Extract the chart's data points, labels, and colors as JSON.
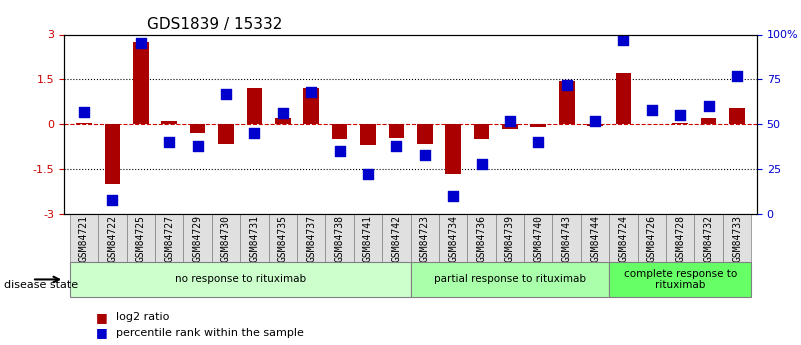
{
  "title": "GDS1839 / 15332",
  "samples": [
    "GSM84721",
    "GSM84722",
    "GSM84725",
    "GSM84727",
    "GSM84729",
    "GSM84730",
    "GSM84731",
    "GSM84735",
    "GSM84737",
    "GSM84738",
    "GSM84741",
    "GSM84742",
    "GSM84723",
    "GSM84734",
    "GSM84736",
    "GSM84739",
    "GSM84740",
    "GSM84743",
    "GSM84744",
    "GSM84724",
    "GSM84726",
    "GSM84728",
    "GSM84732",
    "GSM84733"
  ],
  "log2_ratio": [
    0.05,
    -2.0,
    2.75,
    0.1,
    -0.3,
    -0.65,
    1.2,
    0.2,
    1.2,
    -0.5,
    -0.7,
    -0.45,
    -0.65,
    -1.65,
    -0.5,
    -0.15,
    -0.1,
    1.45,
    -0.05,
    1.7,
    0.0,
    0.05,
    0.2,
    0.55
  ],
  "percentile_rank": [
    57,
    8,
    95,
    40,
    38,
    67,
    45,
    56,
    68,
    35,
    22,
    38,
    33,
    10,
    28,
    52,
    40,
    72,
    52,
    97,
    58,
    55,
    60,
    77
  ],
  "groups": [
    {
      "label": "no response to rituximab",
      "start": 0,
      "end": 12,
      "color": "#ccffcc"
    },
    {
      "label": "partial response to rituximab",
      "start": 12,
      "end": 19,
      "color": "#aaffaa"
    },
    {
      "label": "complete response to\nrituximab",
      "start": 19,
      "end": 24,
      "color": "#66ff66"
    }
  ],
  "bar_color": "#aa0000",
  "dot_color": "#0000cc",
  "ylim": [
    -3,
    3
  ],
  "y2lim": [
    0,
    100
  ],
  "yticks_left": [
    -3,
    -1.5,
    0,
    1.5,
    3
  ],
  "yticks_right": [
    0,
    25,
    50,
    75,
    100
  ],
  "ytick_labels_right": [
    "0",
    "25",
    "50",
    "75",
    "100%"
  ],
  "hline_dotted": [
    -1.5,
    1.5
  ],
  "hline_red": 0,
  "bar_width": 0.55,
  "dot_size": 50,
  "legend_items": [
    {
      "label": "log2 ratio",
      "color": "#aa0000",
      "marker": "s"
    },
    {
      "label": "percentile rank within the sample",
      "color": "#0000cc",
      "marker": "s"
    }
  ],
  "disease_state_label": "disease state",
  "title_fontsize": 11,
  "tick_fontsize": 7,
  "axis_label_fontsize": 8
}
